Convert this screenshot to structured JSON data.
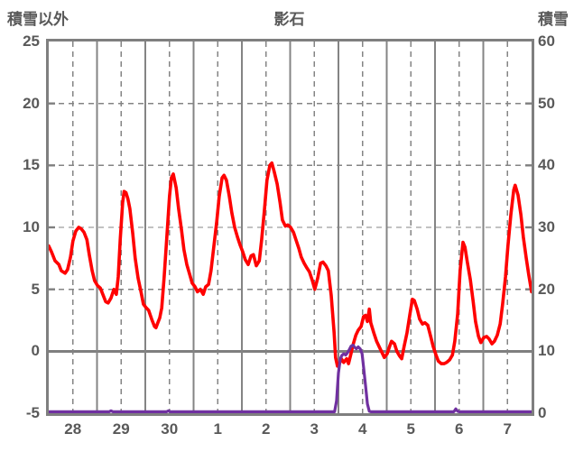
{
  "header": {
    "left_label": "積雪以外",
    "title": "影石",
    "right_label": "積雪"
  },
  "colors": {
    "series_red": "#ff0000",
    "series_purple": "#7030a0",
    "grid": "#848484",
    "zero_line": "#7f7f7f",
    "border": "#7f7f7f",
    "label_text": "#595959",
    "background": "#ffffff"
  },
  "chart_data": {
    "type": "line",
    "title": "影石",
    "x_axis": {
      "tick_labels": [
        "28",
        "29",
        "30",
        "1",
        "2",
        "3",
        "4",
        "5",
        "6",
        "7"
      ],
      "days": 10,
      "labels_at": "noon",
      "gridlines": {
        "solid": "midnight day boundaries",
        "dashed": "noon of each day"
      }
    },
    "left_axis": {
      "label": "積雪以外",
      "min": -5,
      "max": 25,
      "tick_values": [
        25,
        20,
        15,
        10,
        5,
        0,
        -5
      ],
      "tick_labels": [
        "25",
        "20",
        "15",
        "10",
        "5",
        "0",
        "-5"
      ]
    },
    "right_axis": {
      "label": "積雪",
      "min": 0,
      "max": 60,
      "tick_values": [
        60,
        50,
        40,
        30,
        20,
        10,
        0
      ],
      "tick_labels": [
        "60",
        "50",
        "40",
        "30",
        "20",
        "10",
        "0"
      ]
    },
    "grid": {
      "horizontal": "dashed every 5 (left axis), solid heavier line at 0",
      "legend": "none"
    },
    "series": [
      {
        "name": "積雪以外",
        "axis": "left",
        "color": "#ff0000",
        "width": 3.6,
        "points": [
          [
            0,
            8.5
          ],
          [
            0.06,
            8.0
          ],
          [
            0.13,
            7.3
          ],
          [
            0.21,
            7.0
          ],
          [
            0.26,
            6.5
          ],
          [
            0.34,
            6.3
          ],
          [
            0.39,
            6.6
          ],
          [
            0.45,
            7.6
          ],
          [
            0.5,
            8.9
          ],
          [
            0.56,
            9.7
          ],
          [
            0.62,
            10.0
          ],
          [
            0.67,
            9.9
          ],
          [
            0.73,
            9.6
          ],
          [
            0.79,
            9.0
          ],
          [
            0.84,
            7.8
          ],
          [
            0.9,
            6.5
          ],
          [
            0.95,
            5.7
          ],
          [
            1.01,
            5.3
          ],
          [
            1.07,
            5.1
          ],
          [
            1.12,
            4.6
          ],
          [
            1.18,
            4.0
          ],
          [
            1.23,
            3.9
          ],
          [
            1.29,
            4.3
          ],
          [
            1.35,
            5.0
          ],
          [
            1.4,
            4.6
          ],
          [
            1.44,
            6.0
          ],
          [
            1.48,
            9.0
          ],
          [
            1.53,
            12.0
          ],
          [
            1.56,
            12.9
          ],
          [
            1.6,
            12.8
          ],
          [
            1.64,
            12.3
          ],
          [
            1.68,
            11.5
          ],
          [
            1.74,
            9.5
          ],
          [
            1.79,
            7.5
          ],
          [
            1.85,
            5.9
          ],
          [
            1.91,
            4.8
          ],
          [
            1.96,
            3.8
          ],
          [
            2.02,
            3.5
          ],
          [
            2.07,
            3.3
          ],
          [
            2.13,
            2.6
          ],
          [
            2.19,
            2.0
          ],
          [
            2.22,
            1.9
          ],
          [
            2.26,
            2.3
          ],
          [
            2.3,
            2.7
          ],
          [
            2.34,
            3.5
          ],
          [
            2.39,
            6.0
          ],
          [
            2.45,
            9.5
          ],
          [
            2.5,
            12.5
          ],
          [
            2.54,
            14.0
          ],
          [
            2.58,
            14.3
          ],
          [
            2.64,
            13.2
          ],
          [
            2.69,
            11.5
          ],
          [
            2.75,
            9.8
          ],
          [
            2.8,
            8.2
          ],
          [
            2.86,
            7.0
          ],
          [
            2.92,
            6.2
          ],
          [
            2.97,
            5.5
          ],
          [
            3.03,
            5.2
          ],
          [
            3.08,
            4.8
          ],
          [
            3.14,
            5.0
          ],
          [
            3.2,
            4.6
          ],
          [
            3.25,
            5.2
          ],
          [
            3.31,
            5.4
          ],
          [
            3.36,
            6.5
          ],
          [
            3.42,
            8.5
          ],
          [
            3.48,
            10.5
          ],
          [
            3.53,
            12.5
          ],
          [
            3.59,
            14.0
          ],
          [
            3.63,
            14.2
          ],
          [
            3.68,
            13.8
          ],
          [
            3.74,
            12.5
          ],
          [
            3.79,
            11.2
          ],
          [
            3.85,
            10.0
          ],
          [
            3.91,
            9.2
          ],
          [
            3.96,
            8.6
          ],
          [
            4.02,
            8.0
          ],
          [
            4.07,
            7.4
          ],
          [
            4.13,
            7.0
          ],
          [
            4.19,
            7.7
          ],
          [
            4.24,
            7.8
          ],
          [
            4.3,
            6.9
          ],
          [
            4.36,
            7.3
          ],
          [
            4.41,
            9.0
          ],
          [
            4.47,
            11.5
          ],
          [
            4.52,
            13.8
          ],
          [
            4.58,
            15.0
          ],
          [
            4.62,
            15.2
          ],
          [
            4.67,
            14.5
          ],
          [
            4.73,
            13.5
          ],
          [
            4.79,
            12.0
          ],
          [
            4.84,
            10.6
          ],
          [
            4.9,
            10.1
          ],
          [
            4.95,
            10.2
          ],
          [
            5.01,
            10.0
          ],
          [
            5.07,
            9.6
          ],
          [
            5.12,
            9.0
          ],
          [
            5.18,
            8.3
          ],
          [
            5.23,
            7.6
          ],
          [
            5.29,
            7.1
          ],
          [
            5.35,
            6.7
          ],
          [
            5.4,
            6.4
          ],
          [
            5.46,
            5.7
          ],
          [
            5.51,
            5.0
          ],
          [
            5.57,
            5.9
          ],
          [
            5.63,
            7.1
          ],
          [
            5.68,
            7.2
          ],
          [
            5.74,
            6.9
          ],
          [
            5.79,
            6.5
          ],
          [
            5.85,
            4.5
          ],
          [
            5.91,
            1.5
          ],
          [
            5.94,
            -0.5
          ],
          [
            5.98,
            -1.2
          ],
          [
            6.02,
            -1.0
          ],
          [
            6.06,
            -0.6
          ],
          [
            6.11,
            -0.9
          ],
          [
            6.17,
            -0.6
          ],
          [
            6.21,
            -1.0
          ],
          [
            6.26,
            -0.2
          ],
          [
            6.3,
            0.5
          ],
          [
            6.36,
            1.3
          ],
          [
            6.41,
            1.7
          ],
          [
            6.47,
            2.0
          ],
          [
            6.52,
            2.8
          ],
          [
            6.56,
            2.9
          ],
          [
            6.6,
            2.4
          ],
          [
            6.64,
            3.4
          ],
          [
            6.67,
            2.3
          ],
          [
            6.73,
            1.5
          ],
          [
            6.79,
            0.8
          ],
          [
            6.84,
            0.4
          ],
          [
            6.9,
            -0.1
          ],
          [
            6.95,
            -0.5
          ],
          [
            7.01,
            -0.2
          ],
          [
            7.07,
            0.5
          ],
          [
            7.1,
            0.8
          ],
          [
            7.16,
            0.6
          ],
          [
            7.21,
            0.0
          ],
          [
            7.27,
            -0.4
          ],
          [
            7.31,
            -0.6
          ],
          [
            7.36,
            0.4
          ],
          [
            7.42,
            1.5
          ],
          [
            7.48,
            3.0
          ],
          [
            7.53,
            4.2
          ],
          [
            7.57,
            4.1
          ],
          [
            7.63,
            3.4
          ],
          [
            7.68,
            2.6
          ],
          [
            7.74,
            2.2
          ],
          [
            7.79,
            2.3
          ],
          [
            7.85,
            2.1
          ],
          [
            7.91,
            1.2
          ],
          [
            7.96,
            0.4
          ],
          [
            8.02,
            -0.3
          ],
          [
            8.07,
            -0.8
          ],
          [
            8.13,
            -1.0
          ],
          [
            8.19,
            -1.0
          ],
          [
            8.24,
            -0.9
          ],
          [
            8.3,
            -0.7
          ],
          [
            8.36,
            -0.3
          ],
          [
            8.41,
            0.8
          ],
          [
            8.47,
            3.0
          ],
          [
            8.52,
            6.5
          ],
          [
            8.58,
            8.8
          ],
          [
            8.62,
            8.4
          ],
          [
            8.67,
            7.2
          ],
          [
            8.73,
            5.8
          ],
          [
            8.79,
            4.0
          ],
          [
            8.84,
            2.4
          ],
          [
            8.9,
            1.2
          ],
          [
            8.95,
            0.7
          ],
          [
            9.01,
            1.1
          ],
          [
            9.07,
            1.2
          ],
          [
            9.12,
            1.0
          ],
          [
            9.18,
            0.6
          ],
          [
            9.23,
            0.8
          ],
          [
            9.29,
            1.3
          ],
          [
            9.35,
            2.2
          ],
          [
            9.4,
            3.8
          ],
          [
            9.46,
            6.0
          ],
          [
            9.51,
            8.5
          ],
          [
            9.57,
            11.0
          ],
          [
            9.63,
            13.0
          ],
          [
            9.66,
            13.4
          ],
          [
            9.72,
            12.6
          ],
          [
            9.78,
            11.0
          ],
          [
            9.83,
            9.2
          ],
          [
            9.89,
            7.5
          ],
          [
            9.94,
            6.2
          ],
          [
            10,
            4.8
          ]
        ]
      },
      {
        "name": "積雪",
        "axis": "right",
        "color": "#7030a0",
        "width": 3.2,
        "points": [
          [
            0,
            0
          ],
          [
            1.25,
            0
          ],
          [
            1.29,
            0.4
          ],
          [
            1.33,
            0
          ],
          [
            2.44,
            0
          ],
          [
            2.48,
            0.4
          ],
          [
            2.52,
            0
          ],
          [
            5.92,
            0
          ],
          [
            5.96,
            2
          ],
          [
            6.0,
            6.5
          ],
          [
            6.04,
            8.8
          ],
          [
            6.07,
            9.3
          ],
          [
            6.11,
            9.6
          ],
          [
            6.15,
            9.4
          ],
          [
            6.19,
            9.8
          ],
          [
            6.22,
            10.2
          ],
          [
            6.26,
            10.8
          ],
          [
            6.3,
            11.0
          ],
          [
            6.34,
            10.6
          ],
          [
            6.37,
            10.4
          ],
          [
            6.41,
            10.7
          ],
          [
            6.45,
            10.4
          ],
          [
            6.49,
            9.6
          ],
          [
            6.52,
            7.5
          ],
          [
            6.56,
            4.5
          ],
          [
            6.6,
            1.5
          ],
          [
            6.64,
            0.3
          ],
          [
            6.67,
            0
          ],
          [
            8.39,
            0
          ],
          [
            8.43,
            0.7
          ],
          [
            8.47,
            0.3
          ],
          [
            8.5,
            0
          ],
          [
            10,
            0
          ]
        ]
      }
    ]
  }
}
